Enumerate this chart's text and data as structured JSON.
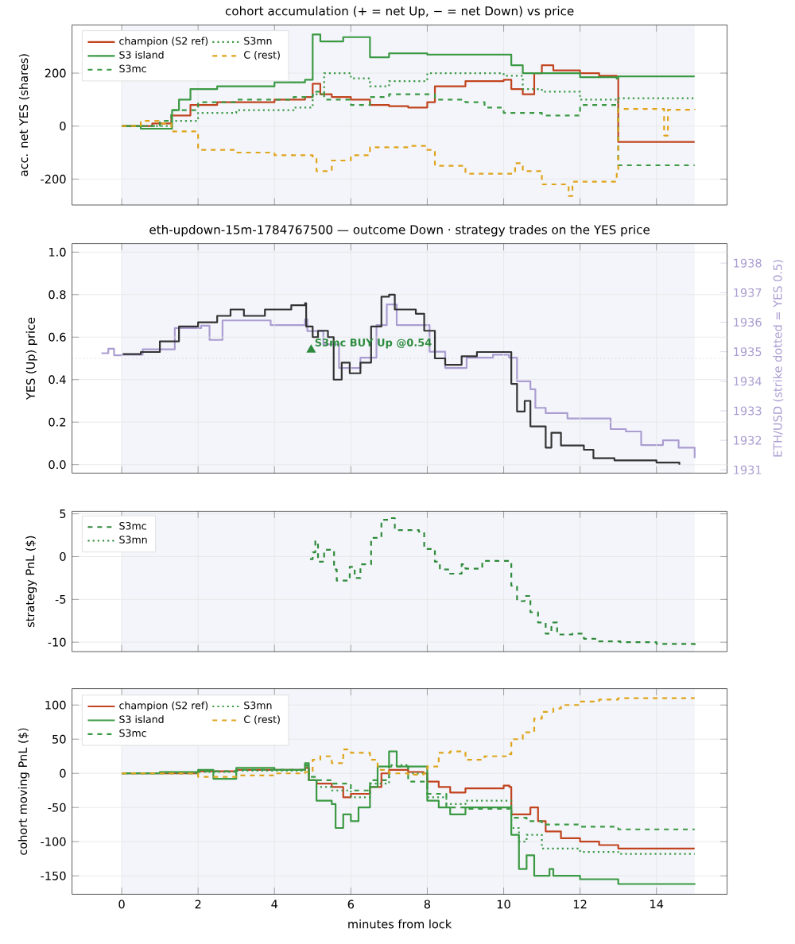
{
  "chart_data": [
    {
      "type": "step",
      "title": "cohort accumulation (+ = net Up, − = net Down) vs price",
      "ylabel": "acc. net YES (shares)",
      "xlim": [
        -1.3,
        15.85
      ],
      "ylim": [
        -298,
        382
      ],
      "xticks": [
        0,
        2,
        4,
        6,
        8,
        10,
        12,
        14
      ],
      "yticks": [
        -200,
        0,
        200
      ],
      "tick_labels": "y",
      "grid": true,
      "legend": "top left",
      "bands": [
        {
          "axis": "x",
          "from": 0,
          "to": 15,
          "color": "#f3f5fa"
        }
      ],
      "series": [
        {
          "name": "champion (S2 ref)",
          "color": "#c1441f",
          "line_style": "solid",
          "x": [
            0,
            0.8,
            1.3,
            1.8,
            2.5,
            4,
            4.8,
            5.0,
            5.2,
            5.5,
            6,
            6.5,
            7,
            7.5,
            8.0,
            8.2,
            9,
            10,
            10.2,
            10.5,
            10.8,
            11,
            11.3,
            12,
            12.5,
            12.96,
            13.0,
            15
          ],
          "values": [
            0,
            10,
            40,
            80,
            90,
            100,
            110,
            160,
            120,
            110,
            100,
            80,
            75,
            70,
            90,
            150,
            170,
            175,
            140,
            120,
            200,
            230,
            210,
            200,
            190,
            180,
            -60,
            -60
          ]
        },
        {
          "name": "S3 island",
          "color": "#3b9943",
          "line_style": "solid",
          "x": [
            0,
            0.5,
            1.3,
            1.32,
            1.5,
            1.8,
            2.5,
            4,
            4.8,
            5.0,
            5.2,
            5.8,
            6.5,
            7,
            8,
            9.5,
            10.2,
            10.5,
            11,
            12,
            12.96,
            13.0,
            15
          ],
          "values": [
            0,
            -10,
            -10,
            60,
            100,
            140,
            150,
            165,
            175,
            346,
            320,
            336,
            260,
            275,
            270,
            270,
            230,
            200,
            200,
            185,
            180,
            188,
            188
          ]
        },
        {
          "name": "S3mc",
          "color": "#3b9943",
          "line_style": "dashed",
          "x": [
            0,
            1,
            1.3,
            2,
            3,
            4.5,
            5,
            5.3,
            6,
            6.5,
            7,
            8,
            8.2,
            9,
            9.5,
            10,
            11,
            12,
            12.96,
            13.0,
            15
          ],
          "values": [
            0,
            20,
            60,
            90,
            100,
            110,
            130,
            100,
            80,
            110,
            120,
            120,
            100,
            90,
            70,
            50,
            40,
            80,
            75,
            -148,
            -148
          ]
        },
        {
          "name": "S3mn",
          "color": "#3b9943",
          "line_style": "dotted",
          "x": [
            0,
            1.3,
            2,
            3,
            4.5,
            5,
            5.3,
            6,
            6.5,
            7,
            8,
            9,
            10,
            10.5,
            11,
            12,
            12.96,
            13.0,
            15
          ],
          "values": [
            0,
            20,
            50,
            60,
            70,
            120,
            200,
            180,
            150,
            170,
            200,
            200,
            190,
            140,
            130,
            100,
            90,
            105,
            105
          ]
        },
        {
          "name": "C (rest)",
          "color": "#e0a41b",
          "line_style": "dashed",
          "x": [
            0,
            0.5,
            1,
            1.3,
            2,
            3,
            4,
            5,
            5.1,
            5.5,
            6,
            6.5,
            7.5,
            8,
            8.2,
            9,
            10,
            10.3,
            10.5,
            11,
            11.7,
            11.8,
            12,
            12.96,
            13.0,
            14,
            14.2,
            14.3,
            15
          ],
          "values": [
            0,
            20,
            10,
            -20,
            -90,
            -100,
            -110,
            -120,
            -170,
            -130,
            -110,
            -80,
            -75,
            -90,
            -150,
            -180,
            -180,
            -140,
            -170,
            -220,
            -264,
            -210,
            -210,
            -170,
            65,
            65,
            -36,
            62,
            65
          ]
        }
      ]
    },
    {
      "type": "step",
      "title": "eth-updown-15m-1784767500 — outcome Down · strategy trades on the YES price",
      "ylabel": "YES (Up) price",
      "y2label": "ETH/USD (strike dotted = YES 0.5)",
      "xlim": [
        -1.3,
        15.85
      ],
      "ylim": [
        -0.04,
        1.04
      ],
      "y2lim": [
        1930.89,
        1938.66
      ],
      "xticks": [
        0,
        2,
        4,
        6,
        8,
        10,
        12,
        14
      ],
      "yticks": [
        {
          "value": 0,
          "label": "0.0"
        },
        0.2,
        0.4,
        0.6,
        0.8,
        {
          "value": 1,
          "label": "1.0"
        }
      ],
      "y2ticks": [
        1931,
        1932,
        1933,
        1934,
        1935,
        1936,
        1937,
        1938
      ],
      "tick_labels": "y",
      "grid": true,
      "bands": [
        {
          "axis": "x",
          "from": 0,
          "to": 15,
          "color": "#f3f5fa"
        }
      ],
      "ref_lines": [
        {
          "axis": "y",
          "value": 0.5,
          "color": "#b3a6d6",
          "line_style": "dotted"
        }
      ],
      "annotations": [
        {
          "text": "S3mc BUY Up @0.54",
          "x": 4.96,
          "y": 0.54
        }
      ],
      "series": [
        {
          "axis": "y2",
          "color": "#ab9dd1",
          "x": [
            -0.53,
            -0.35,
            -0.2,
            0,
            0.55,
            1.39,
            2.08,
            2.3,
            2.64,
            3.33,
            3.9,
            4.8,
            4.86,
            5.28,
            5.69,
            6.25,
            6.67,
            6.94,
            7.2,
            7.78,
            8.06,
            8.47,
            9.03,
            9.72,
            10.14,
            10.35,
            10.7,
            10.83,
            11.1,
            11.67,
            12.2,
            12.8,
            13.2,
            13.6,
            14.17,
            14.58,
            15.0
          ],
          "values": [
            1934.95,
            1935.1,
            1934.88,
            1934.9,
            1935.08,
            1935.8,
            1935.88,
            1935.4,
            1936.06,
            1936.06,
            1935.9,
            1936.1,
            1935.7,
            1935.25,
            1934.45,
            1934.8,
            1935.9,
            1936.6,
            1935.9,
            1935.9,
            1935.0,
            1934.45,
            1934.8,
            1934.9,
            1934.8,
            1934.0,
            1933.73,
            1933.1,
            1932.92,
            1932.74,
            1932.74,
            1932.38,
            1932.3,
            1931.84,
            1932.0,
            1931.75,
            1931.4
          ]
        },
        {
          "color": "#333333",
          "x": [
            0.03,
            0.5,
            1.0,
            1.5,
            2.0,
            2.5,
            2.85,
            3.2,
            3.75,
            4.17,
            4.44,
            4.8,
            4.83,
            5.0,
            5.14,
            5.4,
            5.55,
            5.76,
            5.97,
            6.25,
            6.53,
            6.8,
            7.0,
            7.15,
            7.7,
            7.92,
            8.2,
            8.47,
            8.9,
            9.3,
            10.14,
            10.2,
            10.35,
            10.55,
            10.7,
            11.1,
            11.25,
            11.5,
            12.1,
            12.35,
            12.9,
            14.0,
            14.6
          ],
          "values": [
            0.52,
            0.53,
            0.58,
            0.65,
            0.67,
            0.7,
            0.73,
            0.7,
            0.73,
            0.73,
            0.75,
            0.76,
            0.65,
            0.6,
            0.63,
            0.6,
            0.4,
            0.48,
            0.43,
            0.48,
            0.65,
            0.79,
            0.8,
            0.73,
            0.71,
            0.63,
            0.5,
            0.47,
            0.51,
            0.53,
            0.53,
            0.38,
            0.25,
            0.3,
            0.18,
            0.08,
            0.15,
            0.09,
            0.07,
            0.03,
            0.02,
            0.01,
            0.0
          ]
        }
      ]
    },
    {
      "type": "step",
      "ylabel": "strategy PnL ($)",
      "xlim": [
        -1.3,
        15.85
      ],
      "ylim": [
        -11.1,
        5.3
      ],
      "xticks": [
        0,
        2,
        4,
        6,
        8,
        10,
        12,
        14
      ],
      "yticks": [
        -10,
        -5,
        0,
        5
      ],
      "tick_labels": "y",
      "grid": true,
      "legend": "top left",
      "bands": [
        {
          "axis": "x",
          "from": 0,
          "to": 15,
          "color": "#f3f5fa"
        }
      ],
      "series": [
        {
          "name": "S3mc",
          "color": "#2f8a3a",
          "line_style": "dashed",
          "x": [
            4.93,
            5.0,
            5.07,
            5.14,
            5.3,
            5.5,
            5.56,
            5.63,
            5.97,
            6.1,
            6.25,
            6.53,
            6.8,
            7.0,
            7.15,
            7.78,
            7.92,
            8.2,
            8.33,
            8.6,
            8.9,
            9.0,
            9.44,
            10.14,
            10.2,
            10.35,
            10.55,
            10.7,
            10.9,
            11.1,
            11.25,
            11.4,
            11.8,
            12.1,
            12.4,
            13.05,
            14.0,
            15.0
          ],
          "values": [
            -0.3,
            0.5,
            1.8,
            -0.6,
            0.8,
            0.7,
            -1.5,
            -2.8,
            -1.2,
            -2.5,
            -0.9,
            2.2,
            4.3,
            4.5,
            3.1,
            2.9,
            0.9,
            -0.6,
            -1.5,
            -2.0,
            -0.9,
            -1.4,
            -0.5,
            -0.5,
            -3.4,
            -5.2,
            -4.6,
            -6.5,
            -7.7,
            -9.0,
            -7.7,
            -9.1,
            -9.0,
            -9.6,
            -9.9,
            -10.0,
            -10.2,
            -10.4
          ]
        },
        {
          "name": "S3mn",
          "color": "#2f8a3a",
          "line_style": "dotted"
        }
      ]
    },
    {
      "type": "step",
      "xlabel": "minutes from lock",
      "ylabel": "cohort moving PnL ($)",
      "xlim": [
        -1.3,
        15.85
      ],
      "ylim": [
        -177,
        124
      ],
      "xticks": [
        0,
        2,
        4,
        6,
        8,
        10,
        12,
        14
      ],
      "yticks": [
        -150,
        -100,
        -50,
        0,
        50,
        100
      ],
      "grid": true,
      "legend": "top left",
      "bands": [
        {
          "axis": "x",
          "from": 0,
          "to": 15,
          "color": "#f3f5fa"
        }
      ],
      "series": [
        {
          "name": "champion (S2 ref)",
          "color": "#c1441f",
          "line_style": "solid",
          "x": [
            0,
            2,
            3,
            4,
            4.8,
            4.9,
            5.1,
            5.5,
            5.8,
            6,
            6.5,
            6.8,
            7,
            7.5,
            7.9,
            8.0,
            8.3,
            8.6,
            9,
            9.5,
            10,
            10.15,
            10.2,
            10.5,
            10.7,
            10.9,
            11.1,
            11.5,
            12,
            12.5,
            13,
            15
          ],
          "values": [
            0,
            3,
            5,
            5,
            8,
            -10,
            -15,
            -20,
            -35,
            -30,
            -20,
            0,
            5,
            2,
            0,
            -12,
            -20,
            -28,
            -22,
            -22,
            -18,
            -20,
            -60,
            -60,
            -50,
            -70,
            -85,
            -95,
            -100,
            -105,
            -110,
            -110
          ]
        },
        {
          "name": "S3 island",
          "color": "#3b9943",
          "line_style": "solid",
          "x": [
            0,
            1,
            2,
            2.4,
            3,
            4,
            4.8,
            4.9,
            5.1,
            5.5,
            5.6,
            5.8,
            6,
            6.2,
            6.5,
            6.7,
            7,
            7.2,
            7.9,
            8.0,
            8.3,
            8.6,
            9,
            10,
            10.15,
            10.2,
            10.4,
            10.6,
            10.8,
            11.2,
            11.3,
            12,
            13,
            15
          ],
          "values": [
            0,
            2,
            5,
            -8,
            8,
            5,
            15,
            -10,
            -40,
            -45,
            -80,
            -60,
            -70,
            -50,
            -20,
            10,
            32,
            10,
            10,
            -40,
            -50,
            -60,
            -50,
            -50,
            -50,
            -90,
            -140,
            -120,
            -150,
            -140,
            -150,
            -155,
            -162,
            -163
          ]
        },
        {
          "name": "S3mc",
          "color": "#3b9943",
          "line_style": "dashed",
          "x": [
            0,
            2,
            3,
            4.8,
            4.9,
            5.1,
            5.5,
            6,
            6.5,
            7,
            7.5,
            7.9,
            8.0,
            8.5,
            9,
            10.15,
            10.2,
            10.6,
            11,
            12,
            13,
            15
          ],
          "values": [
            0,
            3,
            5,
            12,
            -5,
            -10,
            -15,
            -25,
            -10,
            10,
            -12,
            -12,
            -30,
            -50,
            -52,
            -50,
            -65,
            -70,
            -75,
            -78,
            -82,
            -82
          ]
        },
        {
          "name": "S3mn",
          "color": "#3b9943",
          "line_style": "dotted",
          "x": [
            0,
            2,
            3,
            4.8,
            4.9,
            5.1,
            5.5,
            6,
            6.5,
            7,
            7.5,
            7.9,
            8.0,
            8.5,
            9,
            10.15,
            10.2,
            10.4,
            10.6,
            11,
            12,
            13,
            15
          ],
          "values": [
            0,
            2,
            4,
            10,
            -10,
            -20,
            -25,
            -35,
            -15,
            12,
            0,
            0,
            -35,
            -45,
            -40,
            -40,
            -80,
            -100,
            -90,
            -110,
            -115,
            -118,
            -118
          ]
        },
        {
          "name": "C (rest)",
          "color": "#e0a41b",
          "line_style": "dashed",
          "x": [
            0,
            2,
            3,
            4,
            4.8,
            5,
            5.2,
            5.5,
            5.8,
            6,
            6.5,
            6.7,
            7,
            7.5,
            7.9,
            8.0,
            8.3,
            8.6,
            9,
            9.5,
            10.15,
            10.2,
            10.5,
            10.8,
            11,
            11.3,
            11.5,
            12,
            12.5,
            13,
            15
          ],
          "values": [
            0,
            -5,
            -3,
            0,
            2,
            20,
            25,
            15,
            35,
            30,
            20,
            5,
            0,
            -2,
            0,
            10,
            30,
            32,
            20,
            25,
            28,
            50,
            60,
            80,
            90,
            95,
            100,
            105,
            108,
            110,
            110
          ]
        }
      ]
    }
  ]
}
